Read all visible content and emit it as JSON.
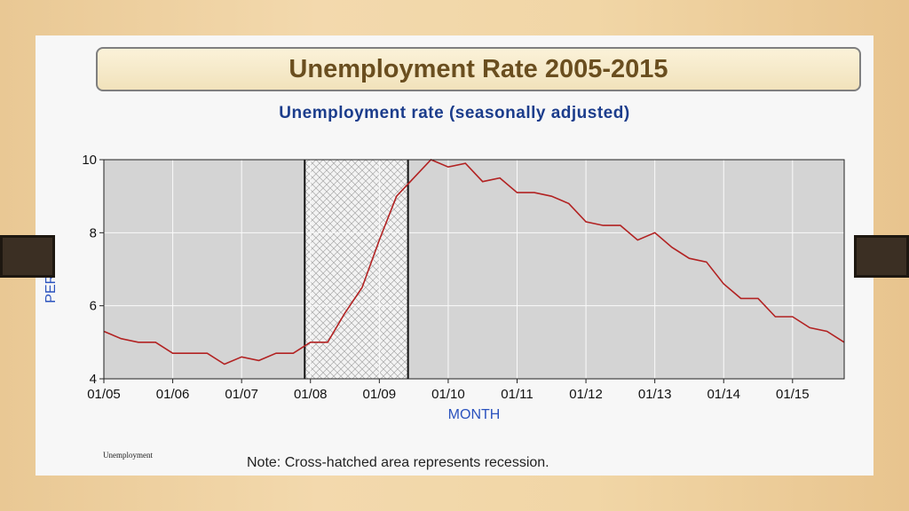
{
  "slide": {
    "heading": "Unemployment Rate 2005-2015",
    "note": "Note: Cross-hatched area represents recession.",
    "footer_label": "Unemployment"
  },
  "colors": {
    "line": "#b22222",
    "plot_background": "#d4d4d4",
    "axis_title": "#2a52be",
    "chart_title": "#1c3d8c"
  },
  "chart_data": {
    "type": "line",
    "title": "Unemployment rate (seasonally adjusted)",
    "xlabel": "MONTH",
    "ylabel": "PERCENT",
    "ylim": [
      4,
      10
    ],
    "yticks": [
      4,
      6,
      8,
      10
    ],
    "xlim": [
      "2005-01",
      "2015-10"
    ],
    "xtick_labels": [
      "01/05",
      "01/06",
      "01/07",
      "01/08",
      "01/09",
      "01/10",
      "01/11",
      "01/12",
      "01/13",
      "01/14",
      "01/15"
    ],
    "grid": true,
    "recession": {
      "start": "2007-12",
      "end": "2009-06",
      "pattern": "cross-hatched"
    },
    "series": [
      {
        "x": [
          "2005-01",
          "2005-04",
          "2005-07",
          "2005-10",
          "2006-01",
          "2006-04",
          "2006-07",
          "2006-10",
          "2007-01",
          "2007-04",
          "2007-07",
          "2007-10",
          "2008-01",
          "2008-04",
          "2008-07",
          "2008-10",
          "2009-01",
          "2009-04",
          "2009-07",
          "2009-10",
          "2010-01",
          "2010-04",
          "2010-07",
          "2010-10",
          "2011-01",
          "2011-04",
          "2011-07",
          "2011-10",
          "2012-01",
          "2012-04",
          "2012-07",
          "2012-10",
          "2013-01",
          "2013-04",
          "2013-07",
          "2013-10",
          "2014-01",
          "2014-04",
          "2014-07",
          "2014-10",
          "2015-01",
          "2015-04",
          "2015-07",
          "2015-10"
        ],
        "values": [
          5.3,
          5.1,
          5.0,
          5.0,
          4.7,
          4.7,
          4.7,
          4.4,
          4.6,
          4.5,
          4.7,
          4.7,
          5.0,
          5.0,
          5.8,
          6.5,
          7.8,
          9.0,
          9.5,
          10.0,
          9.8,
          9.9,
          9.4,
          9.5,
          9.1,
          9.1,
          9.0,
          8.8,
          8.3,
          8.2,
          8.2,
          7.8,
          8.0,
          7.6,
          7.3,
          7.2,
          6.6,
          6.2,
          6.2,
          5.7,
          5.7,
          5.4,
          5.3,
          5.0
        ]
      }
    ]
  }
}
